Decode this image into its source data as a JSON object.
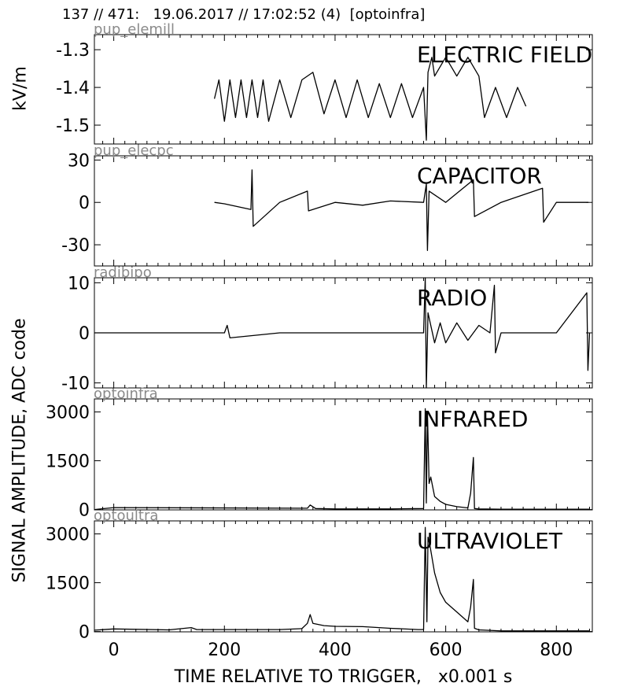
{
  "header": {
    "title": "137 // 471:   19.06.2017 // 17:02:52 (4)  [optoinfra]"
  },
  "figure": {
    "xlabel": "TIME RELATIVE TO TRIGGER,   x0.001 s",
    "ylabel_left_top": "kV/m",
    "ylabel_left_main": "SIGNAL AMPLITUDE,  ADC code"
  },
  "chart_data": [
    {
      "type": "line",
      "id": "pup_elemill",
      "channel": "pup_elemill",
      "title": "ELECTRIC FIELD",
      "ylabel": "kV/m",
      "xlim": [
        -35,
        865
      ],
      "ylim": [
        -1.55,
        -1.26
      ],
      "xticks": [
        0,
        200,
        400,
        600,
        800
      ],
      "yticks": [
        -1.3,
        -1.4,
        -1.5
      ],
      "ytick_labels": [
        "-1.3",
        "-1.4",
        "-1.5"
      ],
      "series": [
        {
          "x": [
            182,
            190,
            200,
            210,
            220,
            230,
            240,
            250,
            260,
            270,
            280,
            300,
            320,
            340,
            360,
            380,
            400,
            420,
            440,
            460,
            480,
            500,
            520,
            540,
            560,
            565,
            568,
            575,
            580,
            600,
            620,
            640,
            660,
            670,
            690,
            710,
            730,
            745
          ],
          "y": [
            -1.43,
            -1.38,
            -1.49,
            -1.38,
            -1.48,
            -1.38,
            -1.48,
            -1.38,
            -1.48,
            -1.38,
            -1.49,
            -1.38,
            -1.48,
            -1.38,
            -1.36,
            -1.47,
            -1.38,
            -1.48,
            -1.38,
            -1.48,
            -1.39,
            -1.48,
            -1.39,
            -1.48,
            -1.4,
            -1.54,
            -1.36,
            -1.32,
            -1.37,
            -1.32,
            -1.37,
            -1.32,
            -1.37,
            -1.48,
            -1.4,
            -1.48,
            -1.4,
            -1.45
          ]
        }
      ]
    },
    {
      "type": "line",
      "id": "pup_elecpc",
      "channel": "pup_elecpc",
      "title": "CAPACITOR",
      "xlim": [
        -35,
        865
      ],
      "ylim": [
        -45,
        33
      ],
      "xticks": [
        0,
        200,
        400,
        600,
        800
      ],
      "yticks": [
        30,
        0,
        -30
      ],
      "ytick_labels": [
        "30",
        "0",
        "-30"
      ],
      "series": [
        {
          "x": [
            182,
            200,
            248,
            250,
            252,
            300,
            350,
            352,
            400,
            450,
            500,
            560,
            565,
            567,
            570,
            600,
            650,
            652,
            700,
            775,
            777,
            800,
            858
          ],
          "y": [
            0,
            -1,
            -5,
            23,
            -17,
            0,
            8,
            -6,
            0,
            -2,
            1,
            0,
            13,
            -34,
            8,
            0,
            16,
            -10,
            0,
            10,
            -14,
            0,
            0
          ]
        }
      ]
    },
    {
      "type": "line",
      "id": "radibipo",
      "channel": "radibipo",
      "title": "RADIO",
      "xlim": [
        -35,
        865
      ],
      "ylim": [
        -11,
        11
      ],
      "xticks": [
        0,
        200,
        400,
        600,
        800
      ],
      "yticks": [
        10,
        0,
        -10
      ],
      "ytick_labels": [
        "10",
        "0",
        "-10"
      ],
      "series": [
        {
          "x": [
            -35,
            0,
            100,
            200,
            205,
            210,
            300,
            400,
            500,
            560,
            563,
            565,
            568,
            580,
            590,
            600,
            620,
            640,
            660,
            680,
            688,
            690,
            700,
            720,
            740,
            800,
            855,
            857,
            860
          ],
          "y": [
            0,
            0,
            0,
            0,
            1.5,
            -1,
            0,
            0,
            0,
            0,
            11,
            -11,
            4,
            -2,
            2,
            -2,
            2,
            -1.5,
            1.5,
            0,
            9.5,
            -4,
            0,
            0,
            0,
            0,
            8,
            -7.5,
            0
          ]
        }
      ]
    },
    {
      "type": "line",
      "id": "optoinfra",
      "channel": "optoinfra",
      "title": "INFRARED",
      "xlim": [
        -35,
        865
      ],
      "ylim": [
        -10,
        3400
      ],
      "xticks": [
        0,
        200,
        400,
        600,
        800
      ],
      "yticks": [
        3000,
        1500,
        0
      ],
      "ytick_labels": [
        "3000",
        "1500",
        "0"
      ],
      "series": [
        {
          "x": [
            -35,
            0,
            350,
            355,
            365,
            400,
            500,
            560,
            563,
            565,
            567,
            570,
            573,
            580,
            590,
            600,
            620,
            640,
            645,
            650,
            652,
            660,
            700,
            800,
            860
          ],
          "y": [
            0,
            60,
            40,
            140,
            30,
            20,
            20,
            30,
            3100,
            200,
            3000,
            800,
            1000,
            400,
            250,
            160,
            90,
            50,
            500,
            1600,
            30,
            20,
            10,
            10,
            10
          ]
        }
      ]
    },
    {
      "type": "line",
      "id": "optoultra",
      "channel": "optoultra",
      "title": "ULTRAVIOLET",
      "xlim": [
        -35,
        865
      ],
      "ylim": [
        -10,
        3400
      ],
      "xticks": [
        0,
        200,
        400,
        600,
        800
      ],
      "yticks": [
        3000,
        1500,
        0
      ],
      "ytick_labels": [
        "3000",
        "1500",
        "0"
      ],
      "series": [
        {
          "x": [
            -35,
            0,
            100,
            140,
            150,
            300,
            340,
            350,
            355,
            360,
            380,
            400,
            450,
            500,
            550,
            560,
            563,
            566,
            568,
            572,
            580,
            590,
            600,
            620,
            640,
            645,
            650,
            652,
            660,
            700,
            860
          ],
          "y": [
            40,
            80,
            50,
            120,
            60,
            60,
            90,
            250,
            520,
            250,
            180,
            160,
            150,
            100,
            60,
            60,
            3200,
            300,
            2900,
            2600,
            1800,
            1200,
            900,
            600,
            300,
            750,
            1600,
            100,
            50,
            20,
            20
          ]
        }
      ]
    }
  ]
}
